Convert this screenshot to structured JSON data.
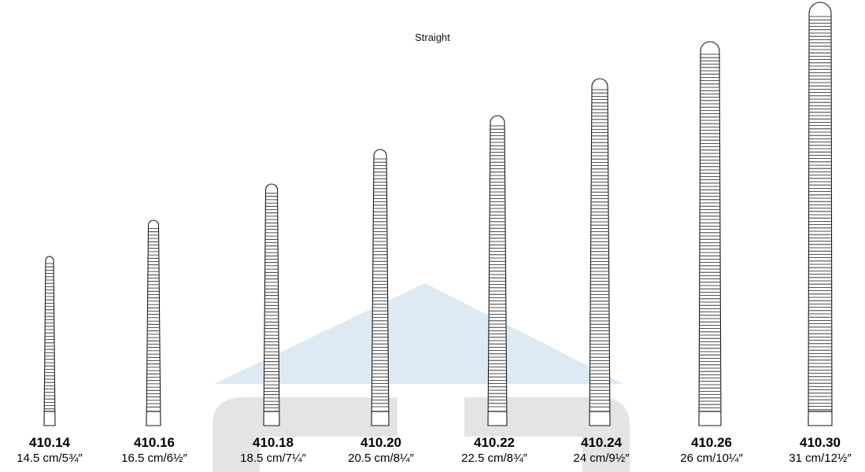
{
  "title": "Straight",
  "colors": {
    "outline": "#1a1a1a",
    "watermark_triangle": "#dde9f3",
    "watermark_letters": "#e4e4e4",
    "text": "#000000"
  },
  "instruments": [
    {
      "code": "410.14",
      "size": "14.5 cm/5¾″"
    },
    {
      "code": "410.16",
      "size": "16.5 cm/6½″"
    },
    {
      "code": "410.18",
      "size": "18.5 cm/7¼″"
    },
    {
      "code": "410.20",
      "size": "20.5 cm/8¼″"
    },
    {
      "code": "410.22",
      "size": "22.5 cm/8¾″"
    },
    {
      "code": "410.24",
      "size": "24 cm/9½″"
    },
    {
      "code": "410.26",
      "size": "26 cm/10¼″"
    },
    {
      "code": "410.30",
      "size": "31 cm/12½″"
    }
  ]
}
